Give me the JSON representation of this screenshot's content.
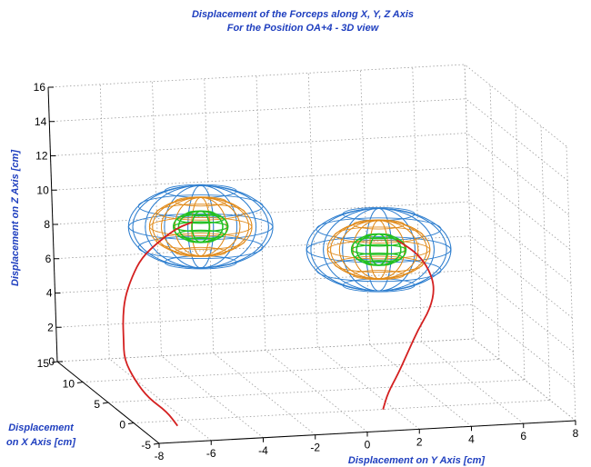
{
  "chart_data": {
    "type": "line",
    "title": [
      "Displacement of the Forceps along X, Y, Z Axis",
      "For the Position OA+4 - 3D view"
    ],
    "xlabel": [
      "Displacement",
      "on X Axis [cm]"
    ],
    "ylabel": "Displacement on Y Axis [cm]",
    "zlabel": "Displacement on Z Axis [cm]",
    "x_ticks": [
      "-5",
      "0",
      "5",
      "10",
      "15"
    ],
    "y_ticks": [
      "-8",
      "-6",
      "-4",
      "-2",
      "0",
      "2",
      "4",
      "6",
      "8"
    ],
    "z_ticks": [
      "0",
      "2",
      "4",
      "6",
      "8",
      "10",
      "12",
      "14",
      "16"
    ],
    "xlim": [
      -5,
      15
    ],
    "ylim": [
      -8,
      8
    ],
    "zlim": [
      0,
      16
    ],
    "grid": true,
    "view": "3D",
    "series": [
      {
        "color": "#d42020",
        "points": [
          [
            -2,
            -6.7,
            0.2
          ],
          [
            -1,
            -6.9,
            0.8
          ],
          [
            0,
            -7.4,
            1.4
          ],
          [
            1,
            -7.7,
            2.2
          ],
          [
            2,
            -7.9,
            3.2
          ],
          [
            2,
            -7.9,
            4.4
          ],
          [
            2,
            -7.9,
            5.6
          ],
          [
            2,
            -7.8,
            6.8
          ],
          [
            2,
            -7.5,
            8
          ],
          [
            2,
            -7.1,
            9.1
          ],
          [
            2,
            -6.4,
            10
          ],
          [
            2,
            -5.7,
            10.7
          ],
          [
            2,
            -5.1,
            11
          ]
        ]
      },
      {
        "color": "#d42020",
        "points": [
          [
            -2,
            1.2,
            0.5
          ],
          [
            -1,
            1.6,
            1.2
          ],
          [
            0,
            2.2,
            2
          ],
          [
            1,
            2.8,
            3
          ],
          [
            2,
            3.4,
            4
          ],
          [
            2,
            3.9,
            5.2
          ],
          [
            2,
            4.1,
            6.4
          ],
          [
            2,
            3.9,
            7.5
          ],
          [
            2,
            3.5,
            8.4
          ],
          [
            2,
            3.0,
            9.0
          ],
          [
            2,
            2.7,
            9.3
          ]
        ]
      }
    ],
    "targets": [
      {
        "center": [
          2,
          -4.8,
          10.7
        ],
        "radii": [
          2.4,
          1.7,
          0.9
        ],
        "colors": [
          "#2f7fcf",
          "#e08a1a",
          "#22c022"
        ]
      },
      {
        "center": [
          2,
          2.0,
          8.8
        ],
        "radii": [
          2.4,
          1.7,
          0.9
        ],
        "colors": [
          "#2f7fcf",
          "#e08a1a",
          "#22c022"
        ]
      }
    ]
  }
}
